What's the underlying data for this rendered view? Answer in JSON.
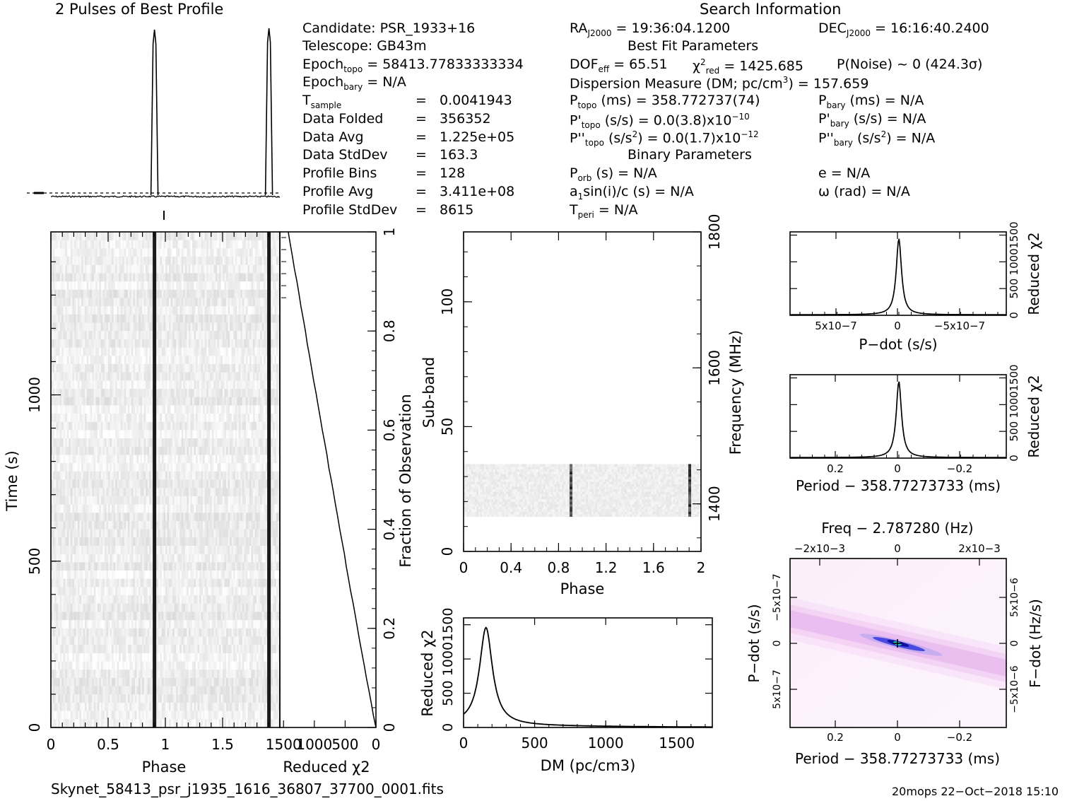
{
  "header": {
    "profile_title": "2 Pulses of Best Profile",
    "search_title": "Search Information",
    "best_fit_title": "Best Fit Parameters",
    "binary_title": "Binary Parameters",
    "candidate": "Candidate:  PSR_1933+16",
    "telescope": "Telescope:  GB43m",
    "epoch_topo_label": "Epoch",
    "epoch_topo_sub": "topo",
    "epoch_topo_value": " = 58413.77833333334",
    "epoch_bary_label": "Epoch",
    "epoch_bary_sub": "bary",
    "epoch_bary_value": " = N/A",
    "left_rows": [
      {
        "label": "T",
        "sub": "sample",
        "eq": "=",
        "value": "0.0041943"
      },
      {
        "label": "Data Folded",
        "sub": "",
        "eq": "=",
        "value": "356352"
      },
      {
        "label": "Data Avg",
        "sub": "",
        "eq": "=",
        "value": "1.225e+05"
      },
      {
        "label": "Data StdDev",
        "sub": "",
        "eq": "=",
        "value": "163.3"
      },
      {
        "label": "Profile Bins",
        "sub": "",
        "eq": "=",
        "value": "128"
      },
      {
        "label": "Profile Avg",
        "sub": "",
        "eq": "=",
        "value": "3.411e+08"
      },
      {
        "label": "Profile StdDev",
        "sub": "",
        "eq": "=",
        "value": "8615"
      }
    ],
    "ra": "RA",
    "ra_sub": "J2000",
    "ra_value": " = 19:36:04.1200",
    "dec": "DEC",
    "dec_sub": "J2000",
    "dec_value": " = 16:16:40.2400",
    "dof": "DOF",
    "dof_sub": "eff",
    "dof_value": " = 65.51",
    "chi_label": "χ",
    "chi_sup": "2",
    "chi_sub": "red",
    "chi_value": " = 1425.685",
    "pnoise": "P(Noise) ~ 0   (424.3σ)",
    "dm_line": "Dispersion Measure (DM; pc/cm",
    "dm_sup": "3",
    "dm_value": ") = 157.659",
    "ptopo": "P",
    "ptopo_sub": "topo",
    "ptopo_value": " (ms) =  358.772737(74)",
    "pbary": "P",
    "pbary_sub": "bary",
    "pbary_value": " (ms) = N/A",
    "pdtopo": "P'",
    "pdtopo_sub": "topo",
    "pdtopo_value": " (s/s) = 0.0(3.8)x10",
    "pdtopo_exp": "−10",
    "pdbary": "P'",
    "pdbary_sub": "bary",
    "pdbary_value": " (s/s) = N/A",
    "pddtopo": "P''",
    "pddtopo_sub": "topo",
    "pddtopo_value": " (s/s",
    "pddtopo_sup": "2",
    "pddtopo_value2": ") = 0.0(1.7)x10",
    "pddtopo_exp": "−12",
    "pddbary": "P''",
    "pddbary_sub": "bary",
    "pddbary_value": " (s/s",
    "pddbary_sup": "2",
    "pddbary_value2": ") = N/A",
    "porb": "P",
    "porb_sub": "orb",
    "porb_value": " (s) = N/A",
    "ecc": "e = N/A",
    "a1": "a",
    "a1_sub": "1",
    "a1_value": "sin(i)/c (s) = N/A",
    "omega": "ω (rad) = N/A",
    "tperi": "T",
    "tperi_sub": "peri",
    "tperi_value": " = N/A"
  },
  "footer": {
    "filename": "Skynet_58413_psr_j1935_1616_36807_37700_0001.fits",
    "stamp": "20mops 22−Oct−2018 15:10"
  },
  "chart_data": [
    {
      "type": "line",
      "name": "profile",
      "x_phase": [
        0,
        0.9,
        0.905,
        0.91,
        1.9,
        1.905,
        1.91,
        2.0
      ],
      "y": [
        0,
        0,
        1,
        0,
        0,
        1,
        0,
        0
      ],
      "title": "2 Pulses of Best Profile"
    },
    {
      "type": "heatmap",
      "name": "time-phase",
      "xlabel": "Phase",
      "ylabel": "Time (s)",
      "xticks": [
        "0",
        "0.5",
        "1",
        "1.5"
      ],
      "yticks": [
        "0",
        "500",
        "1000"
      ],
      "xlim": [
        0,
        2
      ],
      "ylim": [
        0,
        1490
      ],
      "pulse_phase": [
        0.905,
        1.905
      ]
    },
    {
      "type": "line",
      "name": "time-reduced-chi2",
      "xlabel": "Reduced χ2",
      "xticks": [
        "1500",
        "1000",
        "500",
        "0"
      ],
      "y2label": "Fraction of Observation",
      "y2ticks": [
        "0",
        "0.2",
        "0.4",
        "0.6",
        "0.8",
        "1"
      ],
      "x": [
        0,
        1425
      ],
      "y": [
        0,
        1
      ]
    },
    {
      "type": "heatmap",
      "name": "subband-phase",
      "xlabel": "Phase",
      "ylabel": "Sub-band",
      "y2label": "Frequency (MHz)",
      "xticks": [
        "0",
        "0.4",
        "0.8",
        "1.2",
        "1.6",
        "2"
      ],
      "yticks": [
        "0",
        "50",
        "100"
      ],
      "y2ticks": [
        "1400",
        "1600",
        "1800"
      ],
      "xlim": [
        0,
        2
      ],
      "ylim": [
        0,
        128
      ],
      "filled_subbands": [
        14,
        35
      ],
      "pulse_phase": [
        0.905,
        1.905
      ]
    },
    {
      "type": "line",
      "name": "dm-curve",
      "xlabel": "DM (pc/cm3)",
      "ylabel": "Reduced χ2",
      "xticks": [
        "0",
        "500",
        "1000",
        "1500"
      ],
      "yticks": [
        "0",
        "500",
        "1000",
        "1500"
      ],
      "xlim": [
        0,
        1750
      ],
      "ylim": [
        0,
        1600
      ],
      "peak_dm": 157.659,
      "peak_value": 1425
    },
    {
      "type": "line",
      "name": "pdot-curve",
      "xlabel": "P−dot (s/s)",
      "ylabel": "Reduced χ2",
      "xticks": [
        "5x10−7",
        "0",
        "−5x10−7"
      ],
      "yticks": [
        "0",
        "500",
        "1000",
        "1500"
      ],
      "peak_value": 1425
    },
    {
      "type": "line",
      "name": "period-curve",
      "xlabel": "Period − 358.77273733 (ms)",
      "ylabel": "Reduced χ2",
      "xticks": [
        "0.2",
        "0",
        "−0.2"
      ],
      "yticks": [
        "0",
        "500",
        "1000",
        "1500"
      ],
      "peak_value": 1425
    },
    {
      "type": "heatmap",
      "name": "period-pdot",
      "title": "Freq − 2.787280 (Hz)",
      "xlabel": "Period − 358.77273733 (ms)",
      "ylabel": "P−dot (s/s)",
      "y2label": "F−dot (Hz/s)",
      "xticks": [
        "0.2",
        "0",
        "−0.2"
      ],
      "topticks": [
        "−2x10−3",
        "0",
        "2x10−3"
      ],
      "yticks": [
        "−5x10−7",
        "0",
        "5x10−7"
      ],
      "y2ticks": [
        "5x10−6",
        "0",
        "−5x10−6"
      ]
    }
  ]
}
